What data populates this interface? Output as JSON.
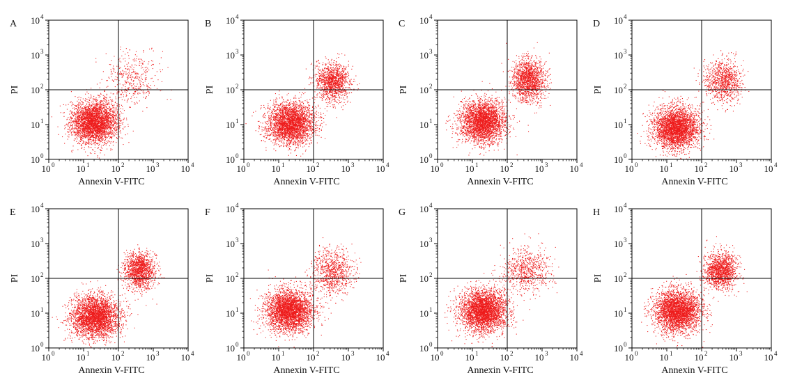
{
  "chart_data": [
    {
      "type": "scatter",
      "panel_label": "A",
      "xlabel": "Annexin V-FITC",
      "ylabel": "PI",
      "xscale": "log",
      "yscale": "log",
      "xlim": [
        1,
        10000
      ],
      "ylim": [
        1,
        10000
      ],
      "xticks": [
        "10",
        "10",
        "10",
        "10",
        "10"
      ],
      "xtick_exponents": [
        "0",
        "1",
        "2",
        "3",
        "4"
      ],
      "yticks": [
        "10",
        "10",
        "10",
        "10",
        "10"
      ],
      "ytick_exponents": [
        "0",
        "1",
        "2",
        "3",
        "4"
      ],
      "quadrant_gates": {
        "x": 100,
        "y": 100
      },
      "point_color": "#ee1c1c",
      "grid": false,
      "clusters": [
        {
          "center": [
            20,
            12
          ],
          "spread_log10": [
            0.33,
            0.3
          ],
          "count": 3300
        },
        {
          "center": [
            250,
            200
          ],
          "spread_log10": [
            0.4,
            0.38
          ],
          "count": 420
        }
      ]
    },
    {
      "type": "scatter",
      "panel_label": "B",
      "xlabel": "Annexin V-FITC",
      "ylabel": "PI",
      "xscale": "log",
      "yscale": "log",
      "xlim": [
        1,
        10000
      ],
      "ylim": [
        1,
        10000
      ],
      "xticks": [
        "10",
        "10",
        "10",
        "10",
        "10"
      ],
      "xtick_exponents": [
        "0",
        "1",
        "2",
        "3",
        "4"
      ],
      "yticks": [
        "10",
        "10",
        "10",
        "10",
        "10"
      ],
      "ytick_exponents": [
        "0",
        "1",
        "2",
        "3",
        "4"
      ],
      "quadrant_gates": {
        "x": 100,
        "y": 100
      },
      "point_color": "#ee1c1c",
      "grid": false,
      "clusters": [
        {
          "center": [
            22,
            11
          ],
          "spread_log10": [
            0.33,
            0.3
          ],
          "count": 3000
        },
        {
          "center": [
            350,
            170
          ],
          "spread_log10": [
            0.24,
            0.27
          ],
          "count": 1300
        }
      ]
    },
    {
      "type": "scatter",
      "panel_label": "C",
      "xlabel": "Annexin V-FITC",
      "ylabel": "PI",
      "xscale": "log",
      "yscale": "log",
      "xlim": [
        1,
        10000
      ],
      "ylim": [
        1,
        10000
      ],
      "xticks": [
        "10",
        "10",
        "10",
        "10",
        "10"
      ],
      "xtick_exponents": [
        "0",
        "1",
        "2",
        "3",
        "4"
      ],
      "yticks": [
        "10",
        "10",
        "10",
        "10",
        "10"
      ],
      "ytick_exponents": [
        "0",
        "1",
        "2",
        "3",
        "4"
      ],
      "quadrant_gates": {
        "x": 100,
        "y": 100
      },
      "point_color": "#ee1c1c",
      "grid": false,
      "clusters": [
        {
          "center": [
            20,
            12
          ],
          "spread_log10": [
            0.33,
            0.3
          ],
          "count": 3000
        },
        {
          "center": [
            400,
            200
          ],
          "spread_log10": [
            0.24,
            0.3
          ],
          "count": 1500
        }
      ]
    },
    {
      "type": "scatter",
      "panel_label": "D",
      "xlabel": "Annexin V-FITC",
      "ylabel": "PI",
      "xscale": "log",
      "yscale": "log",
      "xlim": [
        1,
        10000
      ],
      "ylim": [
        1,
        10000
      ],
      "xticks": [
        "10",
        "10",
        "10",
        "10",
        "10"
      ],
      "xtick_exponents": [
        "0",
        "1",
        "2",
        "3",
        "4"
      ],
      "yticks": [
        "10",
        "10",
        "10",
        "10",
        "10"
      ],
      "ytick_exponents": [
        "0",
        "1",
        "2",
        "3",
        "4"
      ],
      "quadrant_gates": {
        "x": 100,
        "y": 100
      },
      "point_color": "#ee1c1c",
      "grid": false,
      "clusters": [
        {
          "center": [
            18,
            8
          ],
          "spread_log10": [
            0.33,
            0.3
          ],
          "count": 3200
        },
        {
          "center": [
            400,
            180
          ],
          "spread_log10": [
            0.27,
            0.3
          ],
          "count": 950
        }
      ]
    },
    {
      "type": "scatter",
      "panel_label": "E",
      "xlabel": "Annexin V-FITC",
      "ylabel": "PI",
      "xscale": "log",
      "yscale": "log",
      "xlim": [
        1,
        10000
      ],
      "ylim": [
        1,
        10000
      ],
      "xticks": [
        "10",
        "10",
        "10",
        "10",
        "10"
      ],
      "xtick_exponents": [
        "0",
        "1",
        "2",
        "3",
        "4"
      ],
      "yticks": [
        "10",
        "10",
        "10",
        "10",
        "10"
      ],
      "ytick_exponents": [
        "0",
        "1",
        "2",
        "3",
        "4"
      ],
      "quadrant_gates": {
        "x": 100,
        "y": 100
      },
      "point_color": "#ee1c1c",
      "grid": false,
      "clusters": [
        {
          "center": [
            22,
            8
          ],
          "spread_log10": [
            0.35,
            0.3
          ],
          "count": 3300
        },
        {
          "center": [
            400,
            170
          ],
          "spread_log10": [
            0.22,
            0.27
          ],
          "count": 1400
        }
      ]
    },
    {
      "type": "scatter",
      "panel_label": "F",
      "xlabel": "Annexin V-FITC",
      "ylabel": "PI",
      "xscale": "log",
      "yscale": "log",
      "xlim": [
        1,
        10000
      ],
      "ylim": [
        1,
        10000
      ],
      "xticks": [
        "10",
        "10",
        "10",
        "10",
        "10"
      ],
      "xtick_exponents": [
        "0",
        "1",
        "2",
        "3",
        "4"
      ],
      "yticks": [
        "10",
        "10",
        "10",
        "10",
        "10"
      ],
      "ytick_exponents": [
        "0",
        "1",
        "2",
        "3",
        "4"
      ],
      "quadrant_gates": {
        "x": 100,
        "y": 100
      },
      "point_color": "#ee1c1c",
      "grid": false,
      "clusters": [
        {
          "center": [
            20,
            12
          ],
          "spread_log10": [
            0.33,
            0.3
          ],
          "count": 3300
        },
        {
          "center": [
            350,
            160
          ],
          "spread_log10": [
            0.3,
            0.33
          ],
          "count": 850
        }
      ]
    },
    {
      "type": "scatter",
      "panel_label": "G",
      "xlabel": "Annexin V-FITC",
      "ylabel": "PI",
      "xscale": "log",
      "yscale": "log",
      "xlim": [
        1,
        10000
      ],
      "ylim": [
        1,
        10000
      ],
      "xticks": [
        "10",
        "10",
        "10",
        "10",
        "10"
      ],
      "xtick_exponents": [
        "0",
        "1",
        "2",
        "3",
        "4"
      ],
      "yticks": [
        "10",
        "10",
        "10",
        "10",
        "10"
      ],
      "ytick_exponents": [
        "0",
        "1",
        "2",
        "3",
        "4"
      ],
      "quadrant_gates": {
        "x": 100,
        "y": 100
      },
      "point_color": "#ee1c1c",
      "grid": false,
      "clusters": [
        {
          "center": [
            20,
            12
          ],
          "spread_log10": [
            0.33,
            0.3
          ],
          "count": 3400
        },
        {
          "center": [
            350,
            180
          ],
          "spread_log10": [
            0.33,
            0.33
          ],
          "count": 700
        }
      ]
    },
    {
      "type": "scatter",
      "panel_label": "H",
      "xlabel": "Annexin V-FITC",
      "ylabel": "PI",
      "xscale": "log",
      "yscale": "log",
      "xlim": [
        1,
        10000
      ],
      "ylim": [
        1,
        10000
      ],
      "xticks": [
        "10",
        "10",
        "10",
        "10",
        "10"
      ],
      "xtick_exponents": [
        "0",
        "1",
        "2",
        "3",
        "4"
      ],
      "yticks": [
        "10",
        "10",
        "10",
        "10",
        "10"
      ],
      "ytick_exponents": [
        "0",
        "1",
        "2",
        "3",
        "4"
      ],
      "quadrant_gates": {
        "x": 100,
        "y": 100
      },
      "point_color": "#ee1c1c",
      "grid": false,
      "clusters": [
        {
          "center": [
            20,
            12
          ],
          "spread_log10": [
            0.33,
            0.3
          ],
          "count": 3300
        },
        {
          "center": [
            350,
            170
          ],
          "spread_log10": [
            0.24,
            0.27
          ],
          "count": 1400
        }
      ]
    }
  ]
}
